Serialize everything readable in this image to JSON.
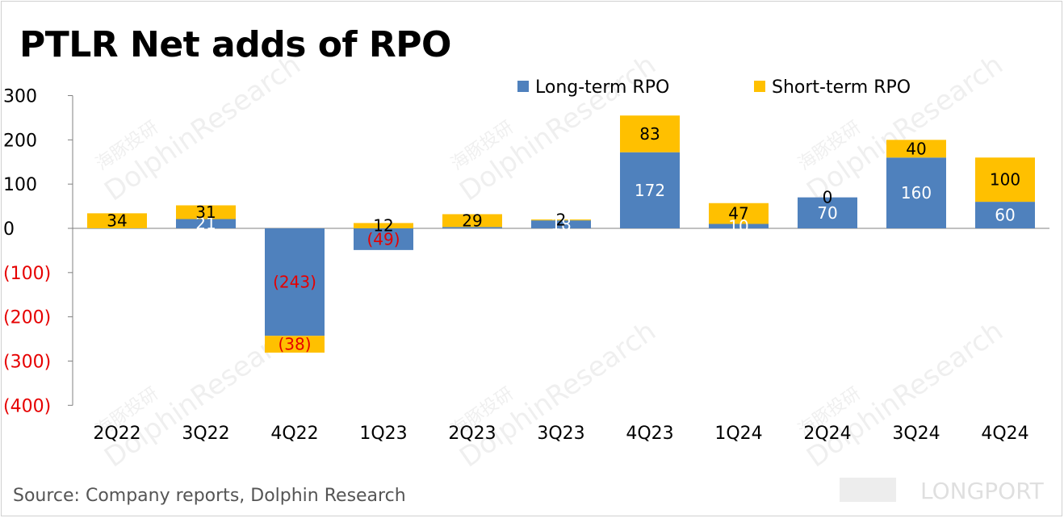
{
  "title": "PTLR Net adds of RPO",
  "source": "Source: Company reports, Dolphin Research",
  "watermarks": {
    "brand": "DolphinResearch",
    "brand_cn": "海豚投研",
    "corner": "LONGPORT"
  },
  "colors": {
    "long_term": "#4f81bd",
    "short_term": "#ffc000",
    "negative_label": "#e60000",
    "axis": "#808080"
  },
  "chart_data": {
    "type": "bar",
    "stacked": true,
    "categories": [
      "2Q22",
      "3Q22",
      "4Q22",
      "1Q23",
      "2Q23",
      "3Q23",
      "4Q23",
      "1Q24",
      "2Q24",
      "3Q24",
      "4Q24"
    ],
    "series": [
      {
        "name": "Long-term RPO",
        "values": [
          -1,
          21,
          -243,
          -49,
          3,
          18,
          172,
          10,
          70,
          160,
          60
        ]
      },
      {
        "name": "Short-term RPO",
        "values": [
          34,
          31,
          -38,
          12,
          29,
          2,
          83,
          47,
          0,
          40,
          100
        ]
      }
    ],
    "data_labels": {
      "Long-term RPO": [
        "",
        "21",
        "(243)",
        "(49)",
        "",
        "18",
        "172",
        "10",
        "70",
        "160",
        "60"
      ],
      "Short-term RPO": [
        "34",
        "31",
        "(38)",
        "12",
        "29",
        "2",
        "83",
        "47",
        "0",
        "40",
        "100"
      ]
    },
    "yticks": [
      300,
      200,
      100,
      0,
      -100,
      -200,
      -300,
      -400
    ],
    "ytick_labels": [
      "300",
      "200",
      "100",
      "0",
      "(100)",
      "(200)",
      "(300)",
      "(400)"
    ],
    "ylim": [
      -400,
      300
    ],
    "legend_position": "top-right",
    "grid": false
  }
}
